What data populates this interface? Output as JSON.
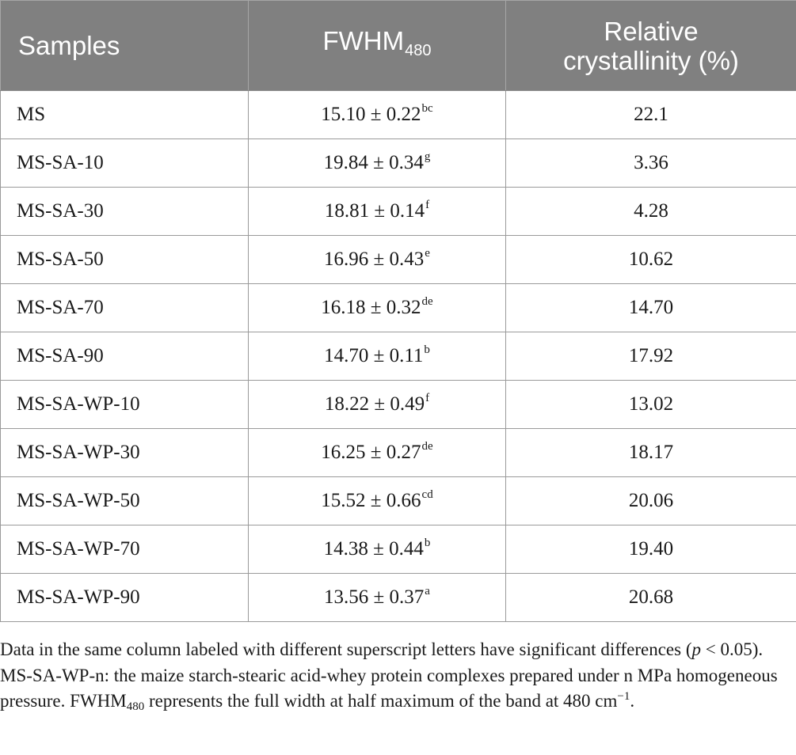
{
  "table": {
    "headers": {
      "samples": "Samples",
      "fwhm_main": "FWHM",
      "fwhm_sub": "480",
      "rc_line1": "Relative",
      "rc_line2": "crystallinity (%)"
    },
    "rows": [
      {
        "sample": "MS",
        "fwhm": "15.10 ± 0.22",
        "letter": "bc",
        "rc": "22.1"
      },
      {
        "sample": "MS-SA-10",
        "fwhm": "19.84 ± 0.34",
        "letter": "g",
        "rc": "3.36"
      },
      {
        "sample": "MS-SA-30",
        "fwhm": "18.81 ± 0.14",
        "letter": "f",
        "rc": "4.28"
      },
      {
        "sample": "MS-SA-50",
        "fwhm": "16.96 ± 0.43",
        "letter": "e",
        "rc": "10.62"
      },
      {
        "sample": "MS-SA-70",
        "fwhm": "16.18 ± 0.32",
        "letter": "de",
        "rc": "14.70"
      },
      {
        "sample": "MS-SA-90",
        "fwhm": "14.70 ± 0.11",
        "letter": "b",
        "rc": "17.92"
      },
      {
        "sample": "MS-SA-WP-10",
        "fwhm": "18.22 ± 0.49",
        "letter": "f",
        "rc": "13.02"
      },
      {
        "sample": "MS-SA-WP-30",
        "fwhm": "16.25 ± 0.27",
        "letter": "de",
        "rc": "18.17"
      },
      {
        "sample": "MS-SA-WP-50",
        "fwhm": "15.52 ± 0.66",
        "letter": "cd",
        "rc": "20.06"
      },
      {
        "sample": "MS-SA-WP-70",
        "fwhm": "14.38 ± 0.44",
        "letter": "b",
        "rc": "19.40"
      },
      {
        "sample": "MS-SA-WP-90",
        "fwhm": "13.56 ± 0.37",
        "letter": "a",
        "rc": "20.68"
      }
    ]
  },
  "footnote": {
    "part1": "Data in the same column labeled with different superscript letters have significant differences (",
    "p": "p",
    "part2": " < 0.05). MS-SA-WP-n: the maize starch-stearic acid-whey protein complexes prepared under n MPa homogeneous pressure. FWHM",
    "sub": "480",
    "part3": " represents the full width at half maximum of the band at 480 cm",
    "sup": "−1",
    "part4": "."
  },
  "colors": {
    "header_bg": "#808080",
    "header_text": "#ffffff",
    "grid_line": "#9a9a9a"
  }
}
